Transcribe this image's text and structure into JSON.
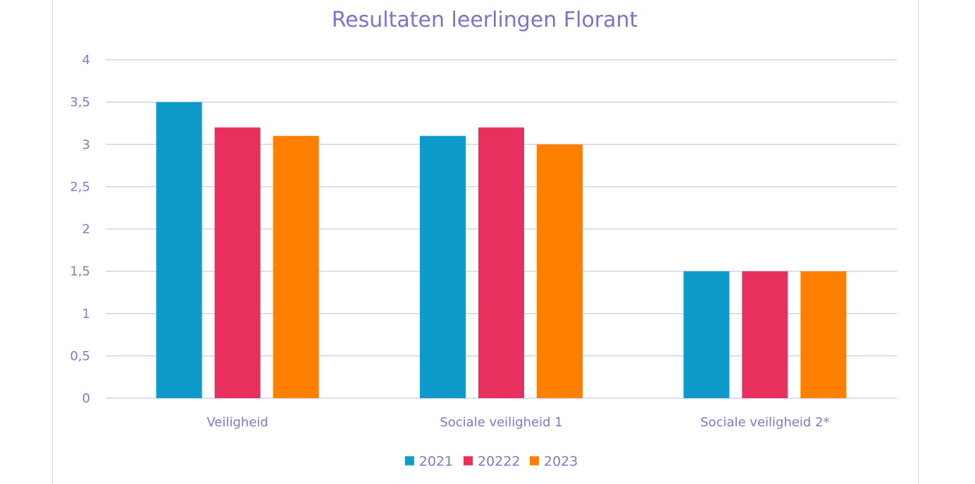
{
  "chart_data": {
    "type": "bar",
    "title": "Resultaten leerlingen Florant",
    "categories": [
      "Veiligheid",
      "Sociale veiligheid 1",
      "Sociale veiligheid 2*"
    ],
    "series": [
      {
        "name": "2021",
        "values": [
          3.5,
          3.1,
          1.5
        ],
        "color": "#0e9bcb"
      },
      {
        "name": "20222",
        "values": [
          3.2,
          3.2,
          1.5
        ],
        "color": "#e8305e"
      },
      {
        "name": "2023",
        "values": [
          3.1,
          3.0,
          1.5
        ],
        "color": "#ff7f00"
      }
    ],
    "ylim": [
      0,
      4
    ],
    "yticks": [
      "0",
      "0,5",
      "1",
      "1,5",
      "2",
      "2,5",
      "3",
      "3,5",
      "4"
    ],
    "xlabel": "",
    "ylabel": "",
    "grid": true,
    "legend_position": "bottom"
  }
}
